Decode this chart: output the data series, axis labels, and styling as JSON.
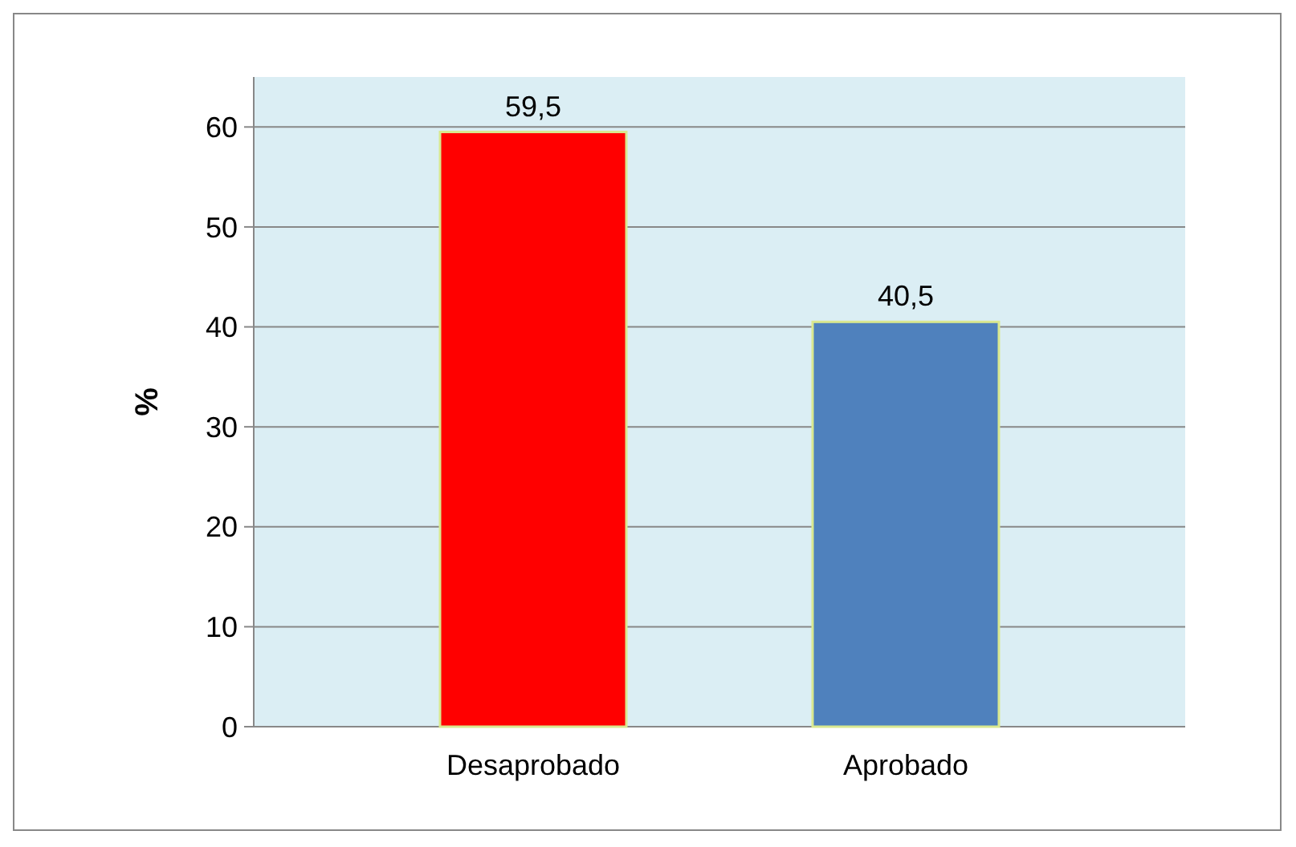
{
  "chart_data": {
    "type": "bar",
    "ylabel": "%",
    "categories": [
      "Desaprobado",
      "Aprobado"
    ],
    "values": [
      59.5,
      40.5
    ],
    "colors": [
      "#ff0000",
      "#4f81bd"
    ],
    "value_labels": [
      "59,5",
      "40,5"
    ],
    "ylim": [
      0,
      65
    ],
    "yticks": [
      0,
      10,
      20,
      30,
      40,
      50,
      60
    ],
    "grid": "y"
  }
}
